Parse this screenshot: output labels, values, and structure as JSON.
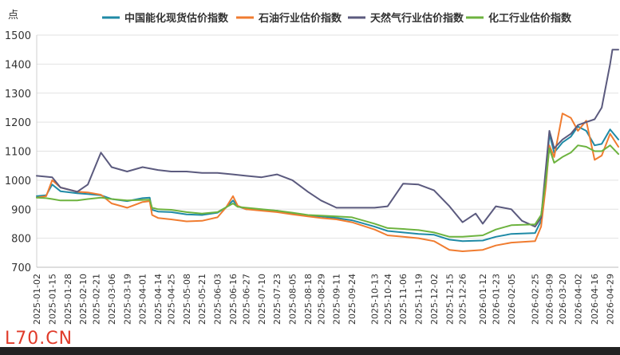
{
  "chart_data": {
    "type": "line",
    "ylabel": "点",
    "ylim": [
      700,
      1500
    ],
    "yticks": [
      700,
      800,
      900,
      1000,
      1100,
      1200,
      1300,
      1400,
      1500
    ],
    "grid": true,
    "legend_position": "top",
    "x_start": "2025-01-02",
    "x_end": "2026-05-06",
    "x_ticks": [
      "2025-01-02",
      "2025-01-15",
      "2025-01-28",
      "2025-02-10",
      "2025-02-21",
      "2025-03-06",
      "2025-03-19",
      "2025-04-01",
      "2025-04-14",
      "2025-04-25",
      "2025-05-08",
      "2025-05-21",
      "2025-06-03",
      "2025-06-16",
      "2025-06-27",
      "2025-07-10",
      "2025-07-23",
      "2025-08-05",
      "2025-08-18",
      "2025-08-29",
      "2025-09-11",
      "2025-09-24",
      "2025-10-13",
      "2025-10-24",
      "2025-11-06",
      "2025-11-19",
      "2025-12-02",
      "2025-12-15",
      "2025-12-26",
      "2026-01-12",
      "2026-01-23",
      "2026-02-05",
      "2026-02-25",
      "2026-03-09",
      "2026-03-20",
      "2026-04-02",
      "2026-04-16",
      "2026-04-29"
    ],
    "series": [
      {
        "name": "中国能化现货估价指数",
        "color": "#1f8aa6",
        "points": [
          [
            "2025-01-02",
            945
          ],
          [
            "2025-01-10",
            948
          ],
          [
            "2025-01-15",
            985
          ],
          [
            "2025-01-22",
            962
          ],
          [
            "2025-02-05",
            955
          ],
          [
            "2025-02-14",
            952
          ],
          [
            "2025-02-25",
            948
          ],
          [
            "2025-03-06",
            935
          ],
          [
            "2025-03-19",
            928
          ],
          [
            "2025-04-01",
            938
          ],
          [
            "2025-04-07",
            940
          ],
          [
            "2025-04-09",
            898
          ],
          [
            "2025-04-14",
            892
          ],
          [
            "2025-04-25",
            890
          ],
          [
            "2025-05-08",
            882
          ],
          [
            "2025-05-21",
            880
          ],
          [
            "2025-06-03",
            888
          ],
          [
            "2025-06-10",
            905
          ],
          [
            "2025-06-16",
            930
          ],
          [
            "2025-06-20",
            910
          ],
          [
            "2025-06-27",
            900
          ],
          [
            "2025-07-10",
            898
          ],
          [
            "2025-07-23",
            895
          ],
          [
            "2025-08-05",
            885
          ],
          [
            "2025-08-18",
            878
          ],
          [
            "2025-08-29",
            875
          ],
          [
            "2025-09-11",
            870
          ],
          [
            "2025-09-24",
            862
          ],
          [
            "2025-10-13",
            840
          ],
          [
            "2025-10-24",
            825
          ],
          [
            "2025-11-06",
            820
          ],
          [
            "2025-11-19",
            815
          ],
          [
            "2025-12-02",
            812
          ],
          [
            "2025-12-15",
            795
          ],
          [
            "2025-12-26",
            790
          ],
          [
            "2026-01-12",
            792
          ],
          [
            "2026-01-23",
            805
          ],
          [
            "2026-02-05",
            815
          ],
          [
            "2026-02-25",
            818
          ],
          [
            "2026-03-02",
            860
          ],
          [
            "2026-03-06",
            1000
          ],
          [
            "2026-03-09",
            1160
          ],
          [
            "2026-03-13",
            1095
          ],
          [
            "2026-03-20",
            1130
          ],
          [
            "2026-03-27",
            1150
          ],
          [
            "2026-04-02",
            1185
          ],
          [
            "2026-04-09",
            1170
          ],
          [
            "2026-04-16",
            1120
          ],
          [
            "2026-04-22",
            1125
          ],
          [
            "2026-04-29",
            1175
          ],
          [
            "2026-05-06",
            1140
          ]
        ]
      },
      {
        "name": "石油行业估价指数",
        "color": "#f07c30",
        "points": [
          [
            "2025-01-02",
            940
          ],
          [
            "2025-01-10",
            945
          ],
          [
            "2025-01-15",
            1000
          ],
          [
            "2025-01-22",
            975
          ],
          [
            "2025-02-05",
            960
          ],
          [
            "2025-02-14",
            958
          ],
          [
            "2025-02-25",
            950
          ],
          [
            "2025-03-06",
            920
          ],
          [
            "2025-03-19",
            905
          ],
          [
            "2025-04-01",
            925
          ],
          [
            "2025-04-07",
            928
          ],
          [
            "2025-04-09",
            880
          ],
          [
            "2025-04-14",
            870
          ],
          [
            "2025-04-25",
            865
          ],
          [
            "2025-05-08",
            858
          ],
          [
            "2025-05-21",
            860
          ],
          [
            "2025-06-03",
            872
          ],
          [
            "2025-06-10",
            905
          ],
          [
            "2025-06-16",
            945
          ],
          [
            "2025-06-20",
            912
          ],
          [
            "2025-06-27",
            900
          ],
          [
            "2025-07-10",
            895
          ],
          [
            "2025-07-23",
            890
          ],
          [
            "2025-08-05",
            882
          ],
          [
            "2025-08-18",
            875
          ],
          [
            "2025-08-29",
            870
          ],
          [
            "2025-09-11",
            865
          ],
          [
            "2025-09-24",
            855
          ],
          [
            "2025-10-13",
            830
          ],
          [
            "2025-10-24",
            810
          ],
          [
            "2025-11-06",
            805
          ],
          [
            "2025-11-19",
            800
          ],
          [
            "2025-12-02",
            790
          ],
          [
            "2025-12-15",
            760
          ],
          [
            "2025-12-26",
            755
          ],
          [
            "2026-01-12",
            760
          ],
          [
            "2026-01-23",
            775
          ],
          [
            "2026-02-05",
            785
          ],
          [
            "2026-02-25",
            790
          ],
          [
            "2026-03-02",
            840
          ],
          [
            "2026-03-06",
            980
          ],
          [
            "2026-03-09",
            1120
          ],
          [
            "2026-03-13",
            1080
          ],
          [
            "2026-03-20",
            1230
          ],
          [
            "2026-03-27",
            1215
          ],
          [
            "2026-04-02",
            1170
          ],
          [
            "2026-04-09",
            1205
          ],
          [
            "2026-04-16",
            1070
          ],
          [
            "2026-04-22",
            1085
          ],
          [
            "2026-04-29",
            1160
          ],
          [
            "2026-05-06",
            1115
          ]
        ]
      },
      {
        "name": "天然气行业估价指数",
        "color": "#5b5a7e",
        "points": [
          [
            "2025-01-02",
            1015
          ],
          [
            "2025-01-10",
            1012
          ],
          [
            "2025-01-15",
            1010
          ],
          [
            "2025-01-22",
            975
          ],
          [
            "2025-02-05",
            960
          ],
          [
            "2025-02-14",
            985
          ],
          [
            "2025-02-25",
            1095
          ],
          [
            "2025-03-06",
            1045
          ],
          [
            "2025-03-19",
            1030
          ],
          [
            "2025-04-01",
            1045
          ],
          [
            "2025-04-14",
            1035
          ],
          [
            "2025-04-25",
            1030
          ],
          [
            "2025-05-08",
            1030
          ],
          [
            "2025-05-21",
            1025
          ],
          [
            "2025-06-03",
            1025
          ],
          [
            "2025-06-16",
            1020
          ],
          [
            "2025-06-27",
            1015
          ],
          [
            "2025-07-10",
            1010
          ],
          [
            "2025-07-23",
            1020
          ],
          [
            "2025-08-05",
            1000
          ],
          [
            "2025-08-18",
            960
          ],
          [
            "2025-08-29",
            930
          ],
          [
            "2025-09-11",
            905
          ],
          [
            "2025-09-24",
            905
          ],
          [
            "2025-10-13",
            905
          ],
          [
            "2025-10-24",
            910
          ],
          [
            "2025-11-06",
            988
          ],
          [
            "2025-11-19",
            985
          ],
          [
            "2025-12-02",
            965
          ],
          [
            "2025-12-15",
            910
          ],
          [
            "2025-12-26",
            855
          ],
          [
            "2026-01-06",
            885
          ],
          [
            "2026-01-12",
            850
          ],
          [
            "2026-01-23",
            910
          ],
          [
            "2026-02-05",
            900
          ],
          [
            "2026-02-14",
            860
          ],
          [
            "2026-02-25",
            840
          ],
          [
            "2026-03-02",
            870
          ],
          [
            "2026-03-09",
            1170
          ],
          [
            "2026-03-13",
            1110
          ],
          [
            "2026-03-20",
            1140
          ],
          [
            "2026-03-27",
            1160
          ],
          [
            "2026-04-02",
            1190
          ],
          [
            "2026-04-09",
            1200
          ],
          [
            "2026-04-16",
            1210
          ],
          [
            "2026-04-22",
            1250
          ],
          [
            "2026-04-29",
            1400
          ],
          [
            "2026-05-01",
            1450
          ],
          [
            "2026-05-06",
            1450
          ]
        ]
      },
      {
        "name": "化工行业估价指数",
        "color": "#6db33f",
        "points": [
          [
            "2025-01-02",
            940
          ],
          [
            "2025-01-10",
            938
          ],
          [
            "2025-01-15",
            935
          ],
          [
            "2025-01-22",
            930
          ],
          [
            "2025-02-05",
            930
          ],
          [
            "2025-02-14",
            935
          ],
          [
            "2025-02-25",
            940
          ],
          [
            "2025-03-06",
            935
          ],
          [
            "2025-03-19",
            930
          ],
          [
            "2025-04-01",
            932
          ],
          [
            "2025-04-07",
            933
          ],
          [
            "2025-04-09",
            905
          ],
          [
            "2025-04-14",
            900
          ],
          [
            "2025-04-25",
            898
          ],
          [
            "2025-05-08",
            890
          ],
          [
            "2025-05-21",
            885
          ],
          [
            "2025-06-03",
            890
          ],
          [
            "2025-06-16",
            920
          ],
          [
            "2025-06-20",
            908
          ],
          [
            "2025-06-27",
            905
          ],
          [
            "2025-07-10",
            900
          ],
          [
            "2025-07-23",
            895
          ],
          [
            "2025-08-05",
            888
          ],
          [
            "2025-08-18",
            880
          ],
          [
            "2025-08-29",
            878
          ],
          [
            "2025-09-11",
            875
          ],
          [
            "2025-09-24",
            872
          ],
          [
            "2025-10-13",
            850
          ],
          [
            "2025-10-24",
            835
          ],
          [
            "2025-11-06",
            832
          ],
          [
            "2025-11-19",
            828
          ],
          [
            "2025-12-02",
            820
          ],
          [
            "2025-12-15",
            805
          ],
          [
            "2025-12-26",
            805
          ],
          [
            "2026-01-12",
            810
          ],
          [
            "2026-01-23",
            830
          ],
          [
            "2026-02-05",
            845
          ],
          [
            "2026-02-25",
            848
          ],
          [
            "2026-03-02",
            880
          ],
          [
            "2026-03-06",
            1000
          ],
          [
            "2026-03-09",
            1110
          ],
          [
            "2026-03-13",
            1060
          ],
          [
            "2026-03-20",
            1080
          ],
          [
            "2026-03-27",
            1095
          ],
          [
            "2026-04-02",
            1120
          ],
          [
            "2026-04-09",
            1115
          ],
          [
            "2026-04-16",
            1100
          ],
          [
            "2026-04-22",
            1100
          ],
          [
            "2026-04-29",
            1120
          ],
          [
            "2026-05-06",
            1090
          ]
        ]
      }
    ]
  },
  "watermark": "L70.CN"
}
